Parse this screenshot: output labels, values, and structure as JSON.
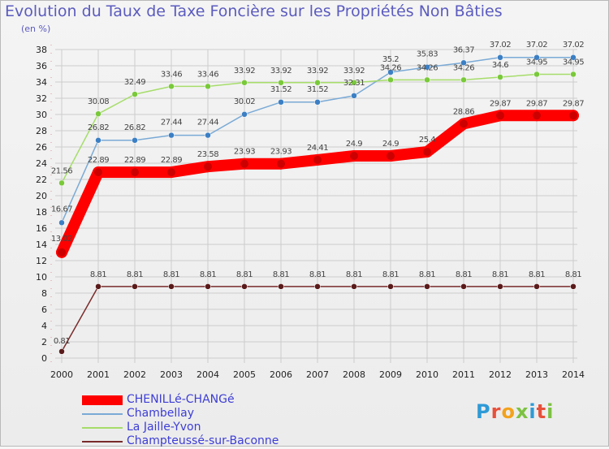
{
  "header": {
    "title": "Evolution du Taux de Taxe Foncière sur les Propriétés Non Bâties",
    "unit": "(en %)"
  },
  "logo": {
    "text": "Proxiti"
  },
  "colors": {
    "title": "#5b5bbf",
    "legend_text": "#3d3dd6",
    "grid": "#cccccc"
  },
  "chart_data": {
    "type": "line",
    "title": "Evolution du Taux de Taxe Foncière sur les Propriétés Non Bâties",
    "ylabel": "(en %)",
    "xlabel": "",
    "ylim": [
      0,
      38
    ],
    "yticks": [
      0,
      2,
      4,
      6,
      8,
      10,
      12,
      14,
      16,
      18,
      20,
      22,
      24,
      26,
      28,
      30,
      32,
      34,
      36,
      38
    ],
    "grid": true,
    "legend_position": "bottom-left",
    "x": [
      "2000",
      "2001",
      "2002",
      "2003",
      "2004",
      "2005",
      "2006",
      "2007",
      "2008",
      "2009",
      "2010",
      "2011",
      "2012",
      "2013",
      "2014"
    ],
    "series": [
      {
        "name": "CHENILLé-CHANGé",
        "color": "#ff0000",
        "marker": "#cc0000",
        "values": [
          13.02,
          22.89,
          22.89,
          22.89,
          23.58,
          23.93,
          23.93,
          24.41,
          24.9,
          24.9,
          25.4,
          28.86,
          29.87,
          29.87,
          29.87
        ],
        "labels": [
          "",
          "22.89",
          "22.89",
          "22.89",
          "23.58",
          "23.93",
          "23.93",
          "24.41",
          "24.9",
          "24.9",
          "25.4",
          "28.86",
          "29.87",
          "29.87",
          "29.87"
        ]
      },
      {
        "name": "Chambellay",
        "color": "#7aaad6",
        "marker": "#3b7fc4",
        "values": [
          16.67,
          26.82,
          26.82,
          27.44,
          27.44,
          30.02,
          31.52,
          31.52,
          32.31,
          35.2,
          35.83,
          36.37,
          37.02,
          37.02,
          37.02
        ],
        "labels": [
          "16.67",
          "26.82",
          "26.82",
          "27.44",
          "27.44",
          "30.02",
          "31.52",
          "31.52",
          "32.31",
          "35.2",
          "35.83",
          "36.37",
          "37.02",
          "37.02",
          "37.02"
        ]
      },
      {
        "name": "La Jaille-Yvon",
        "color": "#a6dd6a",
        "marker": "#79c93a",
        "values": [
          21.56,
          30.08,
          32.49,
          33.46,
          33.46,
          33.92,
          33.92,
          33.92,
          33.92,
          34.26,
          34.26,
          34.26,
          34.6,
          34.95,
          34.95
        ],
        "labels": [
          "21.56",
          "30.08",
          "32.49",
          "33.46",
          "33.46",
          "33.92",
          "33.92",
          "33.92",
          "33.92",
          "34.26",
          "34.26",
          "34.26",
          "34.6",
          "34.95",
          "34.95"
        ]
      },
      {
        "name": "Champteussé-sur-Baconne",
        "color": "#7a2b2b",
        "marker": "#5a1a1a",
        "values": [
          0.81,
          8.81,
          8.81,
          8.81,
          8.81,
          8.81,
          8.81,
          8.81,
          8.81,
          8.81,
          8.81,
          8.81,
          8.81,
          8.81,
          8.81
        ],
        "labels": [
          "0.81",
          "8.81",
          "8.81",
          "8.81",
          "8.81",
          "8.81",
          "8.81",
          "8.81",
          "8.81",
          "8.81",
          "8.81",
          "8.81",
          "8.81",
          "8.81",
          "8.81"
        ]
      }
    ],
    "extra_labels": [
      {
        "x": "2000",
        "value": 13.02,
        "text": "13.02"
      }
    ]
  }
}
